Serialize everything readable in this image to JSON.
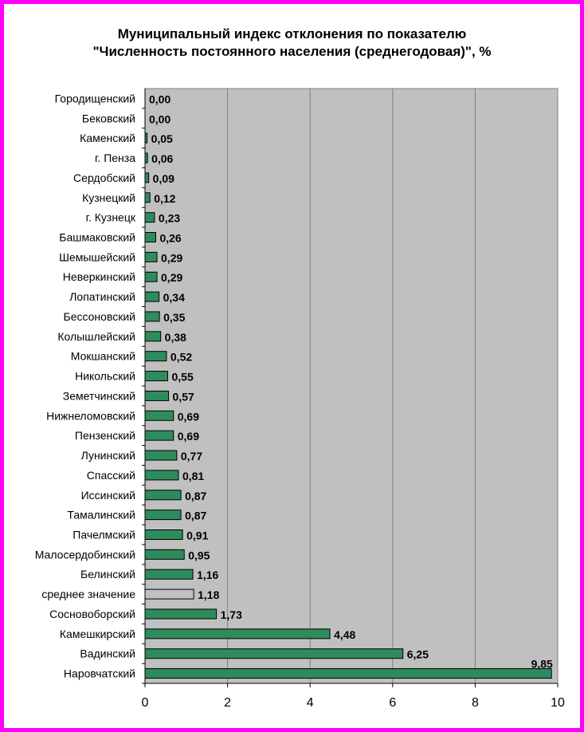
{
  "chart_data": {
    "type": "bar",
    "orientation": "horizontal",
    "title_line1": "Муниципальный индекс отклонения по показателю",
    "title_line2": "\"Численность постоянного населения (среднегодовая)\", %",
    "categories": [
      "Городищенский",
      "Бековский",
      "Каменский",
      "г. Пенза",
      "Сердобский",
      "Кузнецкий",
      "г. Кузнецк",
      "Башмаковский",
      "Шемышейский",
      "Неверкинский",
      "Лопатинский",
      "Бессоновский",
      "Колышлейский",
      "Мокшанский",
      "Никольский",
      "Земетчинский",
      "Нижнеломовский",
      "Пензенский",
      "Лунинский",
      "Спасский",
      "Иссинский",
      "Тамалинский",
      "Пачелмский",
      "Малосердобинский",
      "Белинский",
      "среднее значение",
      "Сосновоборский",
      "Камешкирский",
      "Вадинский",
      "Наровчатский"
    ],
    "values": [
      0.0,
      0.0,
      0.05,
      0.06,
      0.09,
      0.12,
      0.23,
      0.26,
      0.29,
      0.29,
      0.34,
      0.35,
      0.38,
      0.52,
      0.55,
      0.57,
      0.69,
      0.69,
      0.77,
      0.81,
      0.87,
      0.87,
      0.91,
      0.95,
      1.16,
      1.18,
      1.73,
      4.48,
      6.25,
      9.85
    ],
    "value_labels": [
      "0,00",
      "0,00",
      "0,05",
      "0,06",
      "0,09",
      "0,12",
      "0,23",
      "0,26",
      "0,29",
      "0,29",
      "0,34",
      "0,35",
      "0,38",
      "0,52",
      "0,55",
      "0,57",
      "0,69",
      "0,69",
      "0,77",
      "0,81",
      "0,87",
      "0,87",
      "0,91",
      "0,95",
      "1,16",
      "1,18",
      "1,73",
      "4,48",
      "6,25",
      "9,85"
    ],
    "highlight_category": "среднее значение",
    "xlim": [
      0,
      10
    ],
    "xticks": [
      "0",
      "2",
      "4",
      "6",
      "8",
      "10"
    ],
    "grid": "vertical",
    "colors": {
      "bar": "#2e8b5e",
      "highlight_bar": "#c0c0c0",
      "plot_bg": "#c0c0c0",
      "grid": "#808080",
      "frame": "#ff00ff"
    }
  }
}
